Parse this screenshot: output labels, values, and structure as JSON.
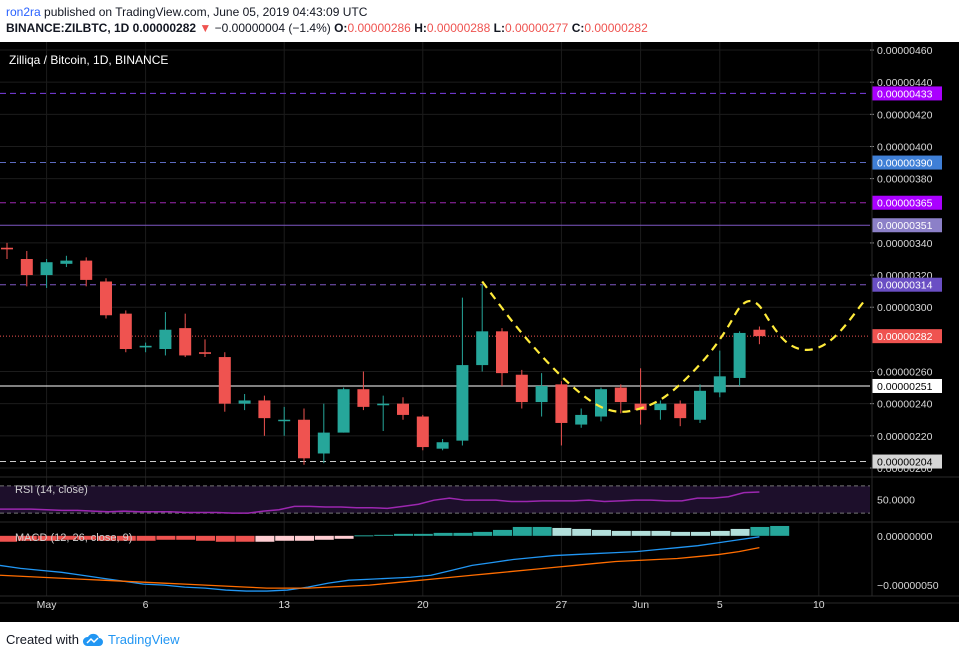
{
  "header": {
    "author": "ron2ra",
    "published_text": "published on TradingView.com, June 05, 2019 04:43:09 UTC",
    "symbol_line": "BINANCE:ZILBTC, 1D",
    "last": "0.00000282",
    "change": "−0.00000004 (−1.4%)",
    "o_label": "O:",
    "o_value": "0.00000286",
    "h_label": "H:",
    "h_value": "0.00000288",
    "l_label": "L:",
    "l_value": "0.00000277",
    "c_label": "C:",
    "c_value": "0.00000282"
  },
  "footer": {
    "created_with": "Created with",
    "brand": "TradingView"
  },
  "colors": {
    "background": "#000000",
    "up": "#26a69a",
    "down": "#ef5350",
    "grid": "#1c1c1c",
    "price_line": "#ef5350",
    "pattern": "#ffeb3b",
    "rsi": "#9c27b0",
    "macd": "#2196f3",
    "signal": "#ff6d00"
  },
  "chart_data": {
    "type": "candlestick",
    "title": "Zilliqa / Bitcoin, 1D, BINANCE",
    "ylim": [
      1.95e-06,
      4.65e-06
    ],
    "y_ticks": [
      "0.00000460",
      "0.00000440",
      "0.00000420",
      "0.00000400",
      "0.00000380",
      "0.00000340",
      "0.00000320",
      "0.00000300",
      "0.00000260",
      "0.00000240",
      "0.00000220",
      "0.00000200"
    ],
    "x_ticks": [
      {
        "label": "May",
        "index": 2
      },
      {
        "label": "6",
        "index": 7
      },
      {
        "label": "13",
        "index": 14
      },
      {
        "label": "20",
        "index": 21
      },
      {
        "label": "27",
        "index": 28
      },
      {
        "label": "Jun",
        "index": 32
      },
      {
        "label": "5",
        "index": 36
      },
      {
        "label": "10",
        "index": 41
      }
    ],
    "candles": [
      {
        "o": 3.37e-06,
        "h": 3.4e-06,
        "l": 3.3e-06,
        "c": 3.36e-06
      },
      {
        "o": 3.3e-06,
        "h": 3.35e-06,
        "l": 3.13e-06,
        "c": 3.2e-06
      },
      {
        "o": 3.2e-06,
        "h": 3.3e-06,
        "l": 3.12e-06,
        "c": 3.28e-06
      },
      {
        "o": 3.27e-06,
        "h": 3.32e-06,
        "l": 3.25e-06,
        "c": 3.29e-06
      },
      {
        "o": 3.29e-06,
        "h": 3.31e-06,
        "l": 3.13e-06,
        "c": 3.17e-06
      },
      {
        "o": 3.16e-06,
        "h": 3.18e-06,
        "l": 2.93e-06,
        "c": 2.95e-06
      },
      {
        "o": 2.96e-06,
        "h": 2.98e-06,
        "l": 2.72e-06,
        "c": 2.74e-06
      },
      {
        "o": 2.75e-06,
        "h": 2.78e-06,
        "l": 2.72e-06,
        "c": 2.76e-06
      },
      {
        "o": 2.74e-06,
        "h": 2.97e-06,
        "l": 2.7e-06,
        "c": 2.86e-06
      },
      {
        "o": 2.87e-06,
        "h": 2.96e-06,
        "l": 2.69e-06,
        "c": 2.7e-06
      },
      {
        "o": 2.72e-06,
        "h": 2.8e-06,
        "l": 2.69e-06,
        "c": 2.71e-06
      },
      {
        "o": 2.69e-06,
        "h": 2.72e-06,
        "l": 2.35e-06,
        "c": 2.4e-06
      },
      {
        "o": 2.4e-06,
        "h": 2.46e-06,
        "l": 2.36e-06,
        "c": 2.42e-06
      },
      {
        "o": 2.42e-06,
        "h": 2.45e-06,
        "l": 2.2e-06,
        "c": 2.31e-06
      },
      {
        "o": 2.3e-06,
        "h": 2.38e-06,
        "l": 2.2e-06,
        "c": 2.3e-06
      },
      {
        "o": 2.3e-06,
        "h": 2.37e-06,
        "l": 2.02e-06,
        "c": 2.06e-06
      },
      {
        "o": 2.09e-06,
        "h": 2.4e-06,
        "l": 2.03e-06,
        "c": 2.22e-06
      },
      {
        "o": 2.22e-06,
        "h": 2.5e-06,
        "l": 2.22e-06,
        "c": 2.49e-06
      },
      {
        "o": 2.49e-06,
        "h": 2.6e-06,
        "l": 2.36e-06,
        "c": 2.38e-06
      },
      {
        "o": 2.39e-06,
        "h": 2.45e-06,
        "l": 2.23e-06,
        "c": 2.4e-06
      },
      {
        "o": 2.4e-06,
        "h": 2.44e-06,
        "l": 2.3e-06,
        "c": 2.33e-06
      },
      {
        "o": 2.32e-06,
        "h": 2.33e-06,
        "l": 2.11e-06,
        "c": 2.13e-06
      },
      {
        "o": 2.12e-06,
        "h": 2.18e-06,
        "l": 2.11e-06,
        "c": 2.16e-06
      },
      {
        "o": 2.17e-06,
        "h": 3.06e-06,
        "l": 2.14e-06,
        "c": 2.64e-06
      },
      {
        "o": 2.64e-06,
        "h": 3.14e-06,
        "l": 2.6e-06,
        "c": 2.85e-06
      },
      {
        "o": 2.85e-06,
        "h": 2.87e-06,
        "l": 2.51e-06,
        "c": 2.59e-06
      },
      {
        "o": 2.58e-06,
        "h": 2.61e-06,
        "l": 2.37e-06,
        "c": 2.41e-06
      },
      {
        "o": 2.41e-06,
        "h": 2.59e-06,
        "l": 2.32e-06,
        "c": 2.51e-06
      },
      {
        "o": 2.52e-06,
        "h": 2.54e-06,
        "l": 2.14e-06,
        "c": 2.28e-06
      },
      {
        "o": 2.27e-06,
        "h": 2.37e-06,
        "l": 2.25e-06,
        "c": 2.33e-06
      },
      {
        "o": 2.32e-06,
        "h": 2.5e-06,
        "l": 2.29e-06,
        "c": 2.49e-06
      },
      {
        "o": 2.5e-06,
        "h": 2.52e-06,
        "l": 2.34e-06,
        "c": 2.41e-06
      },
      {
        "o": 2.4e-06,
        "h": 2.62e-06,
        "l": 2.27e-06,
        "c": 2.36e-06
      },
      {
        "o": 2.36e-06,
        "h": 2.42e-06,
        "l": 2.3e-06,
        "c": 2.4e-06
      },
      {
        "o": 2.4e-06,
        "h": 2.42e-06,
        "l": 2.26e-06,
        "c": 2.31e-06
      },
      {
        "o": 2.3e-06,
        "h": 2.52e-06,
        "l": 2.28e-06,
        "c": 2.48e-06
      },
      {
        "o": 2.47e-06,
        "h": 2.73e-06,
        "l": 2.44e-06,
        "c": 2.57e-06
      },
      {
        "o": 2.56e-06,
        "h": 2.85e-06,
        "l": 2.51e-06,
        "c": 2.84e-06
      },
      {
        "o": 2.86e-06,
        "h": 2.88e-06,
        "l": 2.77e-06,
        "c": 2.82e-06
      }
    ],
    "levels": [
      {
        "label": "0.00000433",
        "value": 4.33e-06,
        "style": "dashed",
        "line": "#7b3fe4",
        "bg": "#aa00ff"
      },
      {
        "label": "0.00000390",
        "value": 3.9e-06,
        "style": "dashed",
        "line": "#5c6bc0",
        "bg": "#3f7fd6"
      },
      {
        "label": "0.00000365",
        "value": 3.65e-06,
        "style": "dashed",
        "line": "#9c27b0",
        "bg": "#aa00ff"
      },
      {
        "label": "0.00000351",
        "value": 3.51e-06,
        "style": "solid",
        "line": "#7e57c2",
        "bg": "#8c80c8"
      },
      {
        "label": "0.00000314",
        "value": 3.14e-06,
        "style": "dashed",
        "line": "#7e57c2",
        "bg": "#6a4fc4"
      },
      {
        "label": "0.00000282",
        "value": 2.82e-06,
        "style": "dotted",
        "line": "#ef5350",
        "bg": "#ef5350"
      },
      {
        "label": "0.00000251",
        "value": 2.51e-06,
        "style": "solid",
        "line": "#ffffff",
        "bg": "#ffffff",
        "fg": "#000000"
      },
      {
        "label": "0.00000204",
        "value": 2.04e-06,
        "style": "dashed",
        "line": "#cccccc",
        "bg": "#d6d6d6",
        "fg": "#000000"
      }
    ],
    "pattern": {
      "points": [
        {
          "i": 24,
          "v": 3.16e-06
        },
        {
          "i": 26,
          "v": 2.83e-06
        },
        {
          "i": 28.5,
          "v": 2.5e-06
        },
        {
          "i": 30.5,
          "v": 2.33e-06
        },
        {
          "i": 32.5,
          "v": 2.38e-06
        },
        {
          "i": 34,
          "v": 2.51e-06
        },
        {
          "i": 36,
          "v": 2.78e-06
        },
        {
          "i": 37.5,
          "v": 3.12e-06
        },
        {
          "i": 39,
          "v": 2.81e-06
        },
        {
          "i": 40,
          "v": 2.73e-06
        },
        {
          "i": 41,
          "v": 2.74e-06
        },
        {
          "i": 42,
          "v": 2.83e-06
        },
        {
          "i": 43.3,
          "v": 3.04e-06
        }
      ]
    },
    "rsi": {
      "label": "RSI (14, close)",
      "tick_label": "50.0000",
      "ylim": [
        20,
        80
      ],
      "upper": 70,
      "lower": 30,
      "values": [
        36,
        36,
        36,
        35,
        34,
        34,
        33,
        32,
        33,
        32,
        32,
        32,
        31,
        31,
        31,
        30,
        30,
        33,
        35,
        40,
        40,
        39,
        39,
        38,
        38,
        37,
        40,
        43,
        49,
        52,
        49,
        49,
        49,
        47,
        47,
        48,
        48,
        48,
        49,
        47,
        48,
        49,
        49,
        48,
        48,
        52,
        52,
        54,
        60,
        61
      ]
    },
    "macd": {
      "label": "MACD (12, 26, close, 9)",
      "tick_labels": [
        "0.00000000",
        "−0.00000050"
      ],
      "ylim": [
        -6e-07,
        1.2e-07
      ],
      "hist": [
        -6e-08,
        -5e-08,
        -5e-08,
        -4e-08,
        -4e-08,
        -5e-08,
        -5e-08,
        -5e-08,
        -4e-08,
        -4e-08,
        -5e-08,
        -6e-08,
        -6e-08,
        -6e-08,
        -5e-08,
        -5e-08,
        -4e-08,
        -3e-08,
        5e-09,
        1e-08,
        2e-08,
        2e-08,
        3e-08,
        3e-08,
        4e-08,
        6e-08,
        9e-08,
        9e-08,
        8e-08,
        7e-08,
        6e-08,
        5e-08,
        5e-08,
        5e-08,
        4e-08,
        4e-08,
        5e-08,
        7e-08,
        9e-08,
        1e-07
      ],
      "macd_line": [
        -3e-07,
        -3.3e-07,
        -3.5e-07,
        -3.7e-07,
        -4e-07,
        -4.3e-07,
        -4.6e-07,
        -4.9e-07,
        -5e-07,
        -5.2e-07,
        -5.3e-07,
        -5.5e-07,
        -5.6e-07,
        -5.6e-07,
        -5.5e-07,
        -5.2e-07,
        -4.8e-07,
        -4.5e-07,
        -4.4e-07,
        -4.3e-07,
        -4.2e-07,
        -4e-07,
        -3.5e-07,
        -3e-07,
        -2.7e-07,
        -2.4e-07,
        -2.2e-07,
        -2e-07,
        -1.9e-07,
        -1.8e-07,
        -1.7e-07,
        -1.6e-07,
        -1.4e-07,
        -1.2e-07,
        -1e-07,
        -7e-08,
        -4e-08,
        -1e-08
      ],
      "signal_line": [
        -4e-07,
        -4.1e-07,
        -4.2e-07,
        -4.3e-07,
        -4.4e-07,
        -4.5e-07,
        -4.6e-07,
        -4.7e-07,
        -4.8e-07,
        -4.9e-07,
        -5e-07,
        -5.1e-07,
        -5.2e-07,
        -5.3e-07,
        -5.3e-07,
        -5.3e-07,
        -5.2e-07,
        -5.1e-07,
        -5e-07,
        -4.8e-07,
        -4.6e-07,
        -4.4e-07,
        -4.2e-07,
        -4e-07,
        -3.8e-07,
        -3.6e-07,
        -3.4e-07,
        -3.2e-07,
        -3e-07,
        -2.8e-07,
        -2.6e-07,
        -2.5e-07,
        -2.4e-07,
        -2.3e-07,
        -2.1e-07,
        -1.9e-07,
        -1.6e-07,
        -1.2e-07
      ]
    }
  }
}
